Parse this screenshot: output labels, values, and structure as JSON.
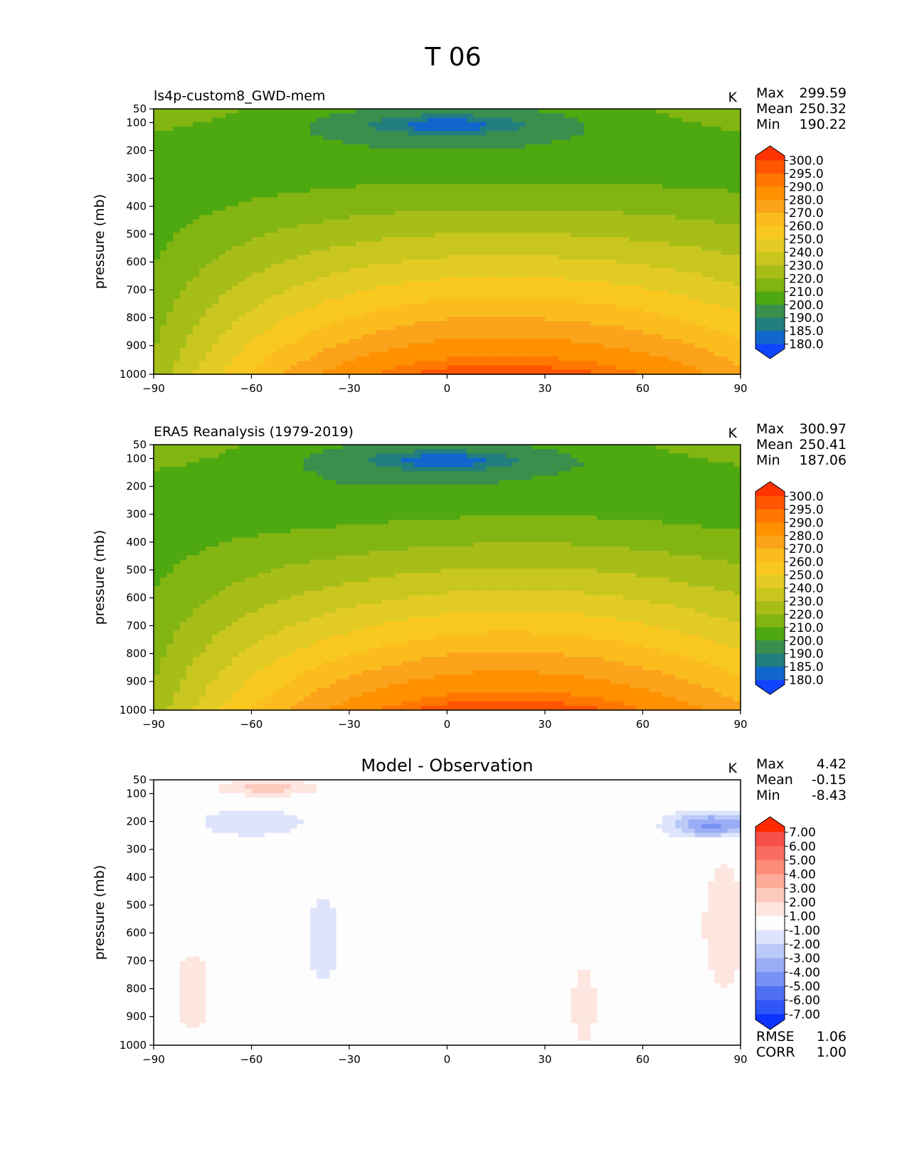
{
  "figure": {
    "title": "T 06"
  },
  "chart_data": [
    {
      "type": "contour",
      "title": "ls4p-custom8_GWD-mem",
      "units": "K",
      "ylabel": "pressure (mb)",
      "xlabel": "",
      "xlim": [
        -90,
        90
      ],
      "ylim": [
        1000,
        50
      ],
      "x_ticks": [
        "−90",
        "−60",
        "−30",
        "0",
        "30",
        "60",
        "90"
      ],
      "y_ticks": [
        "50",
        "100",
        "200",
        "300",
        "400",
        "500",
        "600",
        "700",
        "800",
        "900",
        "1000"
      ],
      "stats": [
        {
          "label": "Max",
          "value": "299.59"
        },
        {
          "label": "Mean",
          "value": "250.32"
        },
        {
          "label": "Min",
          "value": "190.22"
        }
      ],
      "colorbar": {
        "levels": [
          "300.0",
          "295.0",
          "290.0",
          "280.0",
          "270.0",
          "260.0",
          "250.0",
          "240.0",
          "230.0",
          "220.0",
          "210.0",
          "200.0",
          "190.0",
          "185.0",
          "180.0"
        ],
        "colors": [
          "#ff3300",
          "#ff5500",
          "#ff7700",
          "#ff9100",
          "#fba31a",
          "#fbbd1e",
          "#f9c820",
          "#e3cb25",
          "#c8c61f",
          "#a7bd18",
          "#82b511",
          "#4ea810",
          "#3a8f4d",
          "#237e7e",
          "#1166cc",
          "#1144ff"
        ]
      }
    },
    {
      "type": "contour",
      "title": "ERA5 Reanalysis (1979-2019)",
      "units": "K",
      "ylabel": "pressure (mb)",
      "xlabel": "",
      "xlim": [
        -90,
        90
      ],
      "ylim": [
        1000,
        50
      ],
      "x_ticks": [
        "−90",
        "−60",
        "−30",
        "0",
        "30",
        "60",
        "90"
      ],
      "y_ticks": [
        "50",
        "100",
        "200",
        "300",
        "400",
        "500",
        "600",
        "700",
        "800",
        "900",
        "1000"
      ],
      "stats": [
        {
          "label": "Max",
          "value": "300.97"
        },
        {
          "label": "Mean",
          "value": "250.41"
        },
        {
          "label": "Min",
          "value": "187.06"
        }
      ],
      "colorbar": {
        "levels": [
          "300.0",
          "295.0",
          "290.0",
          "280.0",
          "270.0",
          "260.0",
          "250.0",
          "240.0",
          "230.0",
          "220.0",
          "210.0",
          "200.0",
          "190.0",
          "185.0",
          "180.0"
        ],
        "colors": [
          "#ff3300",
          "#ff5500",
          "#ff7700",
          "#ff9100",
          "#fba31a",
          "#fbbd1e",
          "#f9c820",
          "#e3cb25",
          "#c8c61f",
          "#a7bd18",
          "#82b511",
          "#4ea810",
          "#3a8f4d",
          "#237e7e",
          "#1166cc",
          "#1144ff"
        ]
      }
    },
    {
      "type": "contour",
      "title": "Model - Observation",
      "units": "K",
      "ylabel": "pressure (mb)",
      "xlabel": "",
      "xlim": [
        -90,
        90
      ],
      "ylim": [
        1000,
        50
      ],
      "x_ticks": [
        "−90",
        "−60",
        "−30",
        "0",
        "30",
        "60",
        "90"
      ],
      "y_ticks": [
        "50",
        "100",
        "200",
        "300",
        "400",
        "500",
        "600",
        "700",
        "800",
        "900",
        "1000"
      ],
      "stats": [
        {
          "label": "Max",
          "value": "4.42"
        },
        {
          "label": "Mean",
          "value": "-0.15"
        },
        {
          "label": "Min",
          "value": "-8.43"
        }
      ],
      "metrics": [
        {
          "label": "RMSE",
          "value": "1.06"
        },
        {
          "label": "CORR",
          "value": "1.00"
        }
      ],
      "colorbar": {
        "levels": [
          "7.00",
          "6.00",
          "5.00",
          "4.00",
          "3.00",
          "2.00",
          "1.00",
          "-1.00",
          "-2.00",
          "-3.00",
          "-4.00",
          "-5.00",
          "-6.00",
          "-7.00"
        ],
        "colors": [
          "#ff2a00",
          "#f7504a",
          "#f86d5f",
          "#fb8c78",
          "#fcab98",
          "#fdc9bc",
          "#fde6df",
          "#fdfdfd",
          "#dde4fb",
          "#bbc9f8",
          "#99acf5",
          "#7790f3",
          "#5070f2",
          "#2f56f5",
          "#0d33ff"
        ]
      }
    }
  ]
}
